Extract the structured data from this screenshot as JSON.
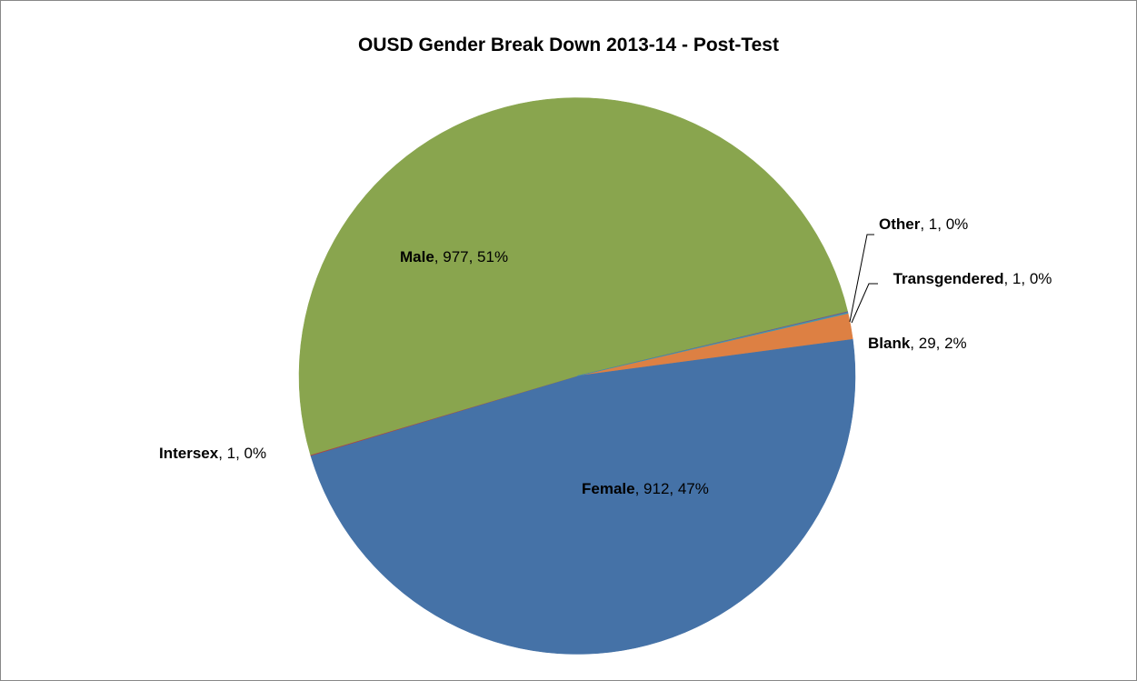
{
  "chart_data": {
    "type": "pie",
    "title": "OUSD Gender Break Down 2013-14 - Post-Test",
    "categories": [
      "Blank",
      "Female",
      "Intersex",
      "Male",
      "Other",
      "Transgendered"
    ],
    "values": [
      29,
      912,
      1,
      977,
      1,
      1
    ],
    "value_labels": [
      ", 29, 2%",
      ", 912, 47%",
      ", 1, 0%",
      ", 977, 51%",
      ", 1, 0%",
      ", 1, 0%"
    ],
    "colors": [
      "#dd8043",
      "#4572a7",
      "#aa4643",
      "#89a54e",
      "#71588f",
      "#4198af"
    ]
  }
}
